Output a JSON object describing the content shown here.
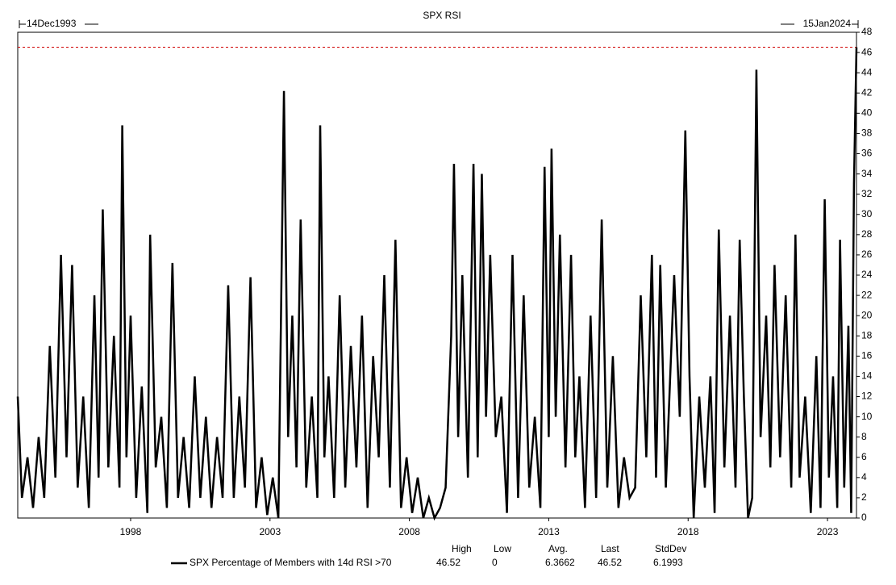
{
  "chart_data": {
    "type": "line",
    "title": "SPX RSI",
    "start_label": "14Dec1993",
    "end_label": "15Jan2024",
    "xlim": [
      1993.95,
      2024.04
    ],
    "xticks": [
      1998,
      2003,
      2008,
      2013,
      2018,
      2023
    ],
    "ylim": [
      0,
      48
    ],
    "yticks": [
      0,
      2,
      4,
      6,
      8,
      10,
      12,
      14,
      16,
      18,
      20,
      22,
      24,
      26,
      28,
      30,
      32,
      34,
      36,
      38,
      40,
      42,
      44,
      46,
      48
    ],
    "x": [
      1993.95,
      1994.1,
      1994.3,
      1994.5,
      1994.7,
      1994.9,
      1995.1,
      1995.3,
      1995.5,
      1995.7,
      1995.9,
      1996.1,
      1996.3,
      1996.5,
      1996.7,
      1996.85,
      1997.0,
      1997.2,
      1997.4,
      1997.6,
      1997.7,
      1997.85,
      1998.0,
      1998.2,
      1998.4,
      1998.6,
      1998.7,
      1998.9,
      1999.1,
      1999.3,
      1999.5,
      1999.7,
      1999.9,
      2000.1,
      2000.3,
      2000.5,
      2000.7,
      2000.9,
      2001.1,
      2001.3,
      2001.5,
      2001.7,
      2001.9,
      2002.1,
      2002.3,
      2002.5,
      2002.7,
      2002.9,
      2003.1,
      2003.3,
      2003.5,
      2003.65,
      2003.8,
      2003.95,
      2004.1,
      2004.3,
      2004.5,
      2004.7,
      2004.8,
      2004.95,
      2005.1,
      2005.3,
      2005.5,
      2005.7,
      2005.9,
      2006.1,
      2006.3,
      2006.5,
      2006.7,
      2006.9,
      2007.1,
      2007.3,
      2007.5,
      2007.7,
      2007.9,
      2008.1,
      2008.3,
      2008.5,
      2008.7,
      2008.9,
      2009.1,
      2009.3,
      2009.5,
      2009.6,
      2009.75,
      2009.9,
      2010.1,
      2010.3,
      2010.45,
      2010.6,
      2010.75,
      2010.9,
      2011.1,
      2011.3,
      2011.5,
      2011.7,
      2011.9,
      2012.1,
      2012.3,
      2012.5,
      2012.7,
      2012.85,
      2013.0,
      2013.1,
      2013.25,
      2013.4,
      2013.6,
      2013.8,
      2013.95,
      2014.1,
      2014.3,
      2014.5,
      2014.7,
      2014.9,
      2015.1,
      2015.3,
      2015.5,
      2015.7,
      2015.9,
      2016.1,
      2016.3,
      2016.5,
      2016.7,
      2016.85,
      2017.0,
      2017.2,
      2017.5,
      2017.7,
      2017.9,
      2018.05,
      2018.2,
      2018.4,
      2018.6,
      2018.8,
      2018.95,
      2019.1,
      2019.3,
      2019.5,
      2019.7,
      2019.85,
      2020.0,
      2020.15,
      2020.3,
      2020.45,
      2020.6,
      2020.8,
      2020.95,
      2021.1,
      2021.3,
      2021.5,
      2021.7,
      2021.85,
      2022.0,
      2022.2,
      2022.4,
      2022.6,
      2022.75,
      2022.9,
      2023.05,
      2023.2,
      2023.35,
      2023.45,
      2023.6,
      2023.75,
      2023.85,
      2023.95,
      2024.04
    ],
    "series": [
      {
        "name": "SPX Percentage of Members with 14d RSI >70",
        "color": "#000000",
        "values": [
          12,
          2,
          6,
          1,
          8,
          2,
          17,
          4,
          26,
          6,
          25,
          3,
          12,
          1,
          22,
          4,
          30.5,
          5,
          18,
          3,
          38.8,
          6,
          20,
          2,
          13,
          0.5,
          28,
          5,
          10,
          1,
          25.2,
          2,
          8,
          1,
          14,
          2,
          10,
          1,
          8,
          2,
          23,
          2,
          12,
          3,
          23.8,
          1,
          6,
          0.3,
          4,
          0,
          42.2,
          8,
          20,
          5,
          29.5,
          3,
          12,
          2,
          38.8,
          6,
          14,
          2,
          22,
          3,
          17,
          5,
          20,
          1,
          16,
          6,
          24,
          3,
          27.5,
          1,
          6,
          0.5,
          4,
          0,
          2,
          0,
          1,
          3,
          18,
          35,
          8,
          24,
          4,
          35,
          6,
          34,
          10,
          26,
          8,
          12,
          0.5,
          26,
          2,
          22,
          3,
          10,
          1,
          34.7,
          8,
          36.5,
          10,
          28,
          5,
          26,
          6,
          14,
          1,
          20,
          2,
          29.5,
          3,
          16,
          1,
          6,
          2,
          3,
          22,
          6,
          26,
          4,
          25,
          3,
          24,
          10,
          38.3,
          14,
          0,
          12,
          3,
          14,
          0.5,
          28.5,
          5,
          20,
          3,
          27.5,
          12,
          0,
          2,
          44.3,
          8,
          20,
          5,
          25,
          6,
          22,
          3,
          28,
          4,
          12,
          0.5,
          16,
          1,
          31.5,
          4,
          14,
          1,
          27.5,
          3,
          19,
          0.5,
          33,
          46.52
        ]
      }
    ],
    "reference_line_color": "#d00000",
    "stats": {
      "headers": [
        "High",
        "Low",
        "Avg.",
        "Last",
        "StdDev"
      ],
      "values": [
        46.52,
        0,
        6.3662,
        46.52,
        6.1993
      ]
    }
  }
}
